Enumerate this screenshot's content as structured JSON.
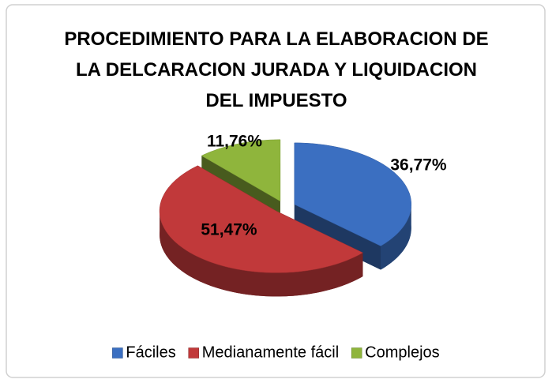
{
  "chart_data": {
    "type": "pie3d",
    "title": "PROCEDIMIENTO PARA LA ELABORACION DE LA DELCARACION JURADA Y LIQUIDACION DEL IMPUESTO",
    "categories": [
      "Fáciles",
      "Medianamente fácil",
      "Complejos"
    ],
    "values": [
      36.77,
      51.47,
      11.76
    ],
    "value_labels": [
      "36,77%",
      "51,47%",
      "11,76%"
    ],
    "colors": [
      "#3b6fc1",
      "#c1393a",
      "#8fb53c"
    ],
    "legend": "bottom"
  }
}
